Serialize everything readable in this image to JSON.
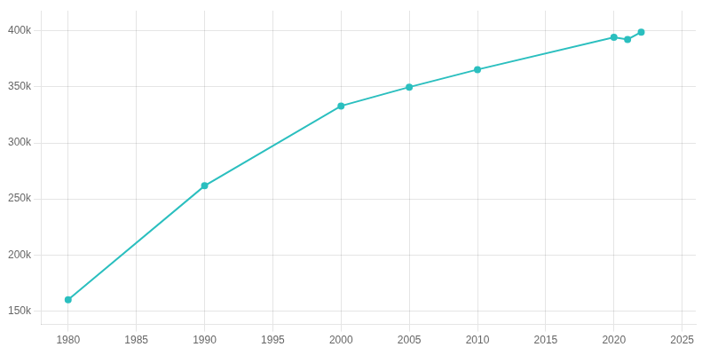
{
  "chart_data": {
    "type": "line",
    "x": [
      1980,
      1990,
      2000,
      2005,
      2010,
      2020,
      2021,
      2022
    ],
    "values": [
      160000,
      261721,
      332969,
      349800,
      365438,
      394266,
      392299,
      398854
    ],
    "color": "#2bbfbf",
    "marker": "circle",
    "xlim": [
      1978,
      2026
    ],
    "ylim": [
      138000,
      418000
    ],
    "xticks": [
      1980,
      1985,
      1990,
      1995,
      2000,
      2005,
      2010,
      2015,
      2020,
      2025
    ],
    "yticks": [
      {
        "value": 150000,
        "label": "150k"
      },
      {
        "value": 200000,
        "label": "200k"
      },
      {
        "value": 250000,
        "label": "250k"
      },
      {
        "value": 300000,
        "label": "300k"
      },
      {
        "value": 350000,
        "label": "350k"
      },
      {
        "value": 400000,
        "label": "400k"
      }
    ],
    "grid": true
  }
}
